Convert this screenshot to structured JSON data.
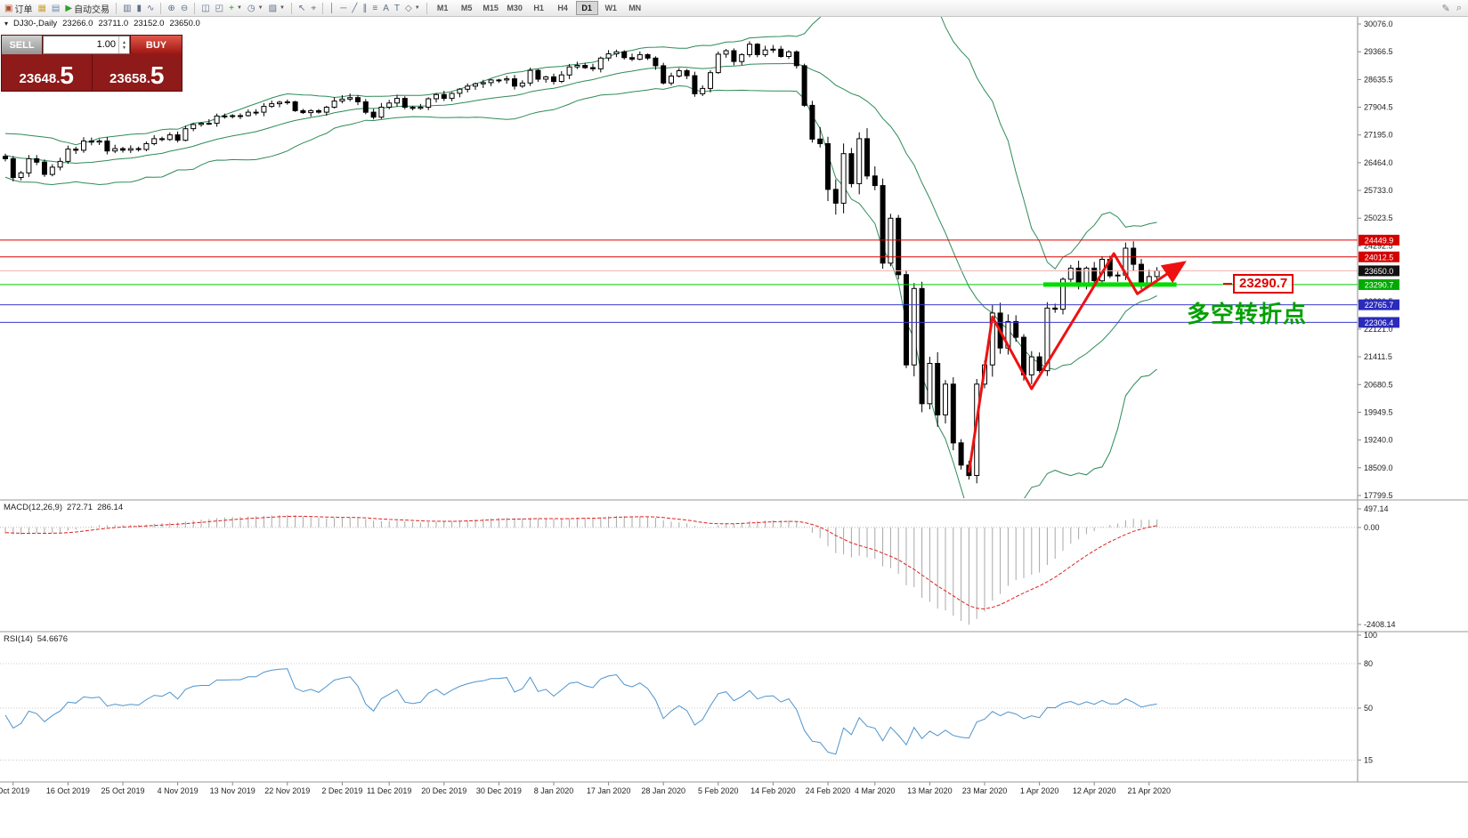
{
  "toolbar": {
    "items": [
      {
        "t": "btn",
        "n": "new-order-button",
        "g": "▣",
        "gc": "#b05030",
        "l": "订单"
      },
      {
        "t": "icon",
        "n": "charts-window-button",
        "g": "▦",
        "gc": "#c9a33c"
      },
      {
        "t": "icon",
        "n": "profiles-button",
        "g": "▤",
        "gc": "#6b88b5"
      },
      {
        "t": "btn",
        "n": "autotrading-button",
        "g": "▶",
        "gc": "#2ca02c",
        "l": "自动交易"
      },
      {
        "t": "sep"
      },
      {
        "t": "icon",
        "n": "bar-chart-button",
        "g": "▥"
      },
      {
        "t": "icon",
        "n": "candlestick-chart-button",
        "g": "▮"
      },
      {
        "t": "icon",
        "n": "line-chart-button",
        "g": "∿"
      },
      {
        "t": "sep"
      },
      {
        "t": "icon",
        "n": "zoom-in-button",
        "g": "⊕"
      },
      {
        "t": "icon",
        "n": "zoom-out-button",
        "g": "⊖"
      },
      {
        "t": "sep"
      },
      {
        "t": "icon",
        "n": "tile-windows-button",
        "g": "◫"
      },
      {
        "t": "icon",
        "n": "cascade-windows-button",
        "g": "◰"
      },
      {
        "t": "icon",
        "n": "indicators-button",
        "g": "+",
        "gc": "#1f9e1f",
        "dd": true
      },
      {
        "t": "icon",
        "n": "periods-button",
        "g": "◷",
        "dd": true
      },
      {
        "t": "icon",
        "n": "templates-button",
        "g": "▨",
        "dd": true
      },
      {
        "t": "sep"
      },
      {
        "t": "icon",
        "n": "cursor-button",
        "g": "↖"
      },
      {
        "t": "icon",
        "n": "crosshair-button",
        "g": "⌖"
      },
      {
        "t": "sep"
      },
      {
        "t": "icon",
        "n": "vertical-line-button",
        "g": "│"
      },
      {
        "t": "icon",
        "n": "horizontal-line-button",
        "g": "─"
      },
      {
        "t": "icon",
        "n": "trendline-button",
        "g": "╱"
      },
      {
        "t": "icon",
        "n": "channel-button",
        "g": "∥"
      },
      {
        "t": "icon",
        "n": "fibonacci-button",
        "g": "≡"
      },
      {
        "t": "icon",
        "n": "text-button",
        "g": "A"
      },
      {
        "t": "icon",
        "n": "label-button",
        "g": "T"
      },
      {
        "t": "icon",
        "n": "shapes-button",
        "g": "◇",
        "dd": true
      },
      {
        "t": "sep"
      },
      {
        "t": "tf",
        "l": "M1"
      },
      {
        "t": "tf",
        "l": "M5"
      },
      {
        "t": "tf",
        "l": "M15"
      },
      {
        "t": "tf",
        "l": "M30"
      },
      {
        "t": "tf",
        "l": "H1"
      },
      {
        "t": "tf",
        "l": "H4"
      },
      {
        "t": "tf",
        "l": "D1",
        "active": true
      },
      {
        "t": "tf",
        "l": "W1"
      },
      {
        "t": "tf",
        "l": "MN"
      }
    ],
    "right_icons": [
      {
        "n": "edit-icon",
        "g": "✎"
      },
      {
        "n": "search-icon",
        "g": "⌕"
      }
    ]
  },
  "chart_header": {
    "toggle_glyph": "▾",
    "symbol_period": "DJ30-,Daily",
    "open": "23266.0",
    "high": "23711.0",
    "low": "23152.0",
    "close": "23650.0"
  },
  "trade_panel": {
    "sell_label": "SELL",
    "buy_label": "BUY",
    "volume": "1.00",
    "spinner_up": "▲",
    "spinner_down": "▼",
    "sell_price": {
      "main": "23648",
      "dot": ".",
      "big": "5"
    },
    "buy_price": {
      "main": "23658",
      "dot": ".",
      "big": "5"
    }
  },
  "indicator_labels": {
    "macd": {
      "name": "MACD(12,26,9)",
      "main": "272.71",
      "signal": "286.14"
    },
    "rsi": {
      "name": "RSI(14)",
      "value": "54.6676"
    }
  },
  "annotations": {
    "price_flag": "23290.7",
    "note": "多空转折点"
  },
  "chart_data": {
    "type": "candlestick",
    "symbol": "DJ30",
    "timeframe": "Daily",
    "ohlc_display": {
      "open": 23266.0,
      "high": 23711.0,
      "low": 23152.0,
      "close": 23650.0
    },
    "candle_up": "#FFFFFF",
    "candle_down": "#000000",
    "candle_border": "#000000",
    "closes": [
      26570,
      26080,
      26200,
      26570,
      26480,
      26160,
      26350,
      26500,
      26820,
      26790,
      27030,
      27000,
      27030,
      26770,
      26830,
      26790,
      26830,
      26810,
      26960,
      27090,
      27070,
      27190,
      27050,
      27350,
      27460,
      27490,
      27490,
      27680,
      27680,
      27690,
      27690,
      27780,
      27780,
      27930,
      28000,
      28040,
      28050,
      27820,
      27770,
      27820,
      27780,
      27910,
      28070,
      28120,
      28160,
      28050,
      27780,
      27650,
      27910,
      28020,
      28140,
      27910,
      27880,
      27910,
      28130,
      28240,
      28140,
      28270,
      28380,
      28460,
      28520,
      28550,
      28620,
      28620,
      28650,
      28460,
      28540,
      28870,
      28640,
      28700,
      28580,
      28750,
      28960,
      29000,
      28940,
      28910,
      29190,
      29300,
      29350,
      29200,
      29160,
      29280,
      29190,
      28990,
      28540,
      28720,
      28860,
      28730,
      28260,
      28400,
      28810,
      29290,
      29380,
      29100,
      29280,
      29550,
      29280,
      29400,
      29420,
      29230,
      29350,
      28990,
      27960,
      27080,
      26960,
      25770,
      25410,
      26700,
      25920,
      27090,
      26120,
      25870,
      23850,
      25020,
      23550,
      21200,
      23190,
      20190,
      21240,
      19900,
      20700,
      19170,
      18590,
      18320,
      20700,
      21200,
      22550,
      21640,
      22330,
      21920,
      20940,
      21410,
      21050,
      22680,
      22650,
      23430,
      23720,
      23250,
      23720,
      23390,
      23950,
      23520,
      23540,
      24240,
      23820,
      23290,
      23500,
      23650
    ],
    "price_axis": {
      "max": 30076.0,
      "min": 17799.5,
      "labels": [
        "30076.0",
        "29366.5",
        "28635.5",
        "27904.5",
        "27195.0",
        "26464.0",
        "25733.0",
        "25023.5",
        "24292.5",
        "23561.5",
        "22830.5",
        "22121.0",
        "21411.5",
        "20680.5",
        "19949.5",
        "19240.0",
        "18509.0",
        "17799.5"
      ]
    },
    "hlines": [
      {
        "price": 24449.9,
        "label": "24449.9",
        "line": "#E00000",
        "tag": "#D40000"
      },
      {
        "price": 24012.5,
        "label": "24012.5",
        "line": "#E00000",
        "tag": "#D40000"
      },
      {
        "price": 23650.0,
        "label": "23650.0",
        "line": "#F0B0B0",
        "tag": "#111111"
      },
      {
        "price": 23290.7,
        "label": "23290.7",
        "line": "#00CC00",
        "tag": "#00AA00"
      },
      {
        "price": 22765.7,
        "label": "22765.7",
        "line": "#3A3ACC",
        "tag": "#2A2ABB"
      },
      {
        "price": 22306.4,
        "label": "22306.4",
        "line": "#3A3ACC",
        "tag": "#2A2ABB"
      }
    ],
    "green_segment": {
      "price": 23290.7,
      "from_index": 132.5,
      "to_index": 149.5,
      "color": "#00DD00"
    },
    "trend_arrow": {
      "color": "#EE1111",
      "points": [
        [
          123,
          18400
        ],
        [
          126,
          22450
        ],
        [
          131,
          20580
        ],
        [
          141.5,
          24100
        ],
        [
          144.5,
          23050
        ],
        [
          150.5,
          23870
        ]
      ]
    },
    "bollinger": {
      "period": 20,
      "deviation": 2,
      "color": "#2E8B57"
    },
    "macd": {
      "fast": 12,
      "slow": 26,
      "signal": 9,
      "axis_max": 497.14,
      "axis_min": -2408.14,
      "axis_labels": [
        "497.14",
        "0.00",
        "-2408.14"
      ],
      "histogram_color": "#A8A8A8",
      "signal_color": "#E02020"
    },
    "rsi": {
      "period": 14,
      "color": "#4F94CD",
      "levels": [
        80,
        50,
        15
      ],
      "axis_labels": [
        "100",
        "80",
        "50",
        "15"
      ]
    },
    "date_axis": {
      "labels": [
        "Oct 2019",
        "16 Oct 2019",
        "25 Oct 2019",
        "4 Nov 2019",
        "13 Nov 2019",
        "22 Nov 2019",
        "2 Dec 2019",
        "11 Dec 2019",
        "20 Dec 2019",
        "30 Dec 2019",
        "8 Jan 2020",
        "17 Jan 2020",
        "28 Jan 2020",
        "5 Feb 2020",
        "14 Feb 2020",
        "24 Feb 2020",
        "4 Mar 2020",
        "13 Mar 2020",
        "23 Mar 2020",
        "1 Apr 2020",
        "12 Apr 2020",
        "21 Apr 2020"
      ],
      "indices": [
        1,
        8,
        15,
        22,
        29,
        36,
        43,
        49,
        56,
        63,
        70,
        77,
        84,
        91,
        98,
        105,
        111,
        118,
        125,
        132,
        139,
        146
      ]
    }
  }
}
